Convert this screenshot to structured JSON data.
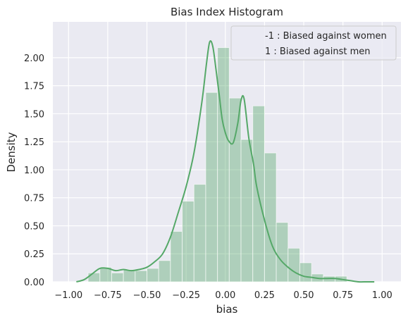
{
  "chart_data": {
    "type": "bar",
    "title": "Bias Index Histogram",
    "xlabel": "bias",
    "ylabel": "Density",
    "xlim": [
      -1.1,
      1.12
    ],
    "ylim": [
      0,
      2.32
    ],
    "xticks": [
      -1.0,
      -0.75,
      -0.5,
      -0.25,
      0.0,
      0.25,
      0.5,
      0.75,
      1.0
    ],
    "xtick_labels": [
      "−1.00",
      "−0.75",
      "−0.50",
      "−0.25",
      "0.00",
      "0.25",
      "0.50",
      "0.75",
      "1.00"
    ],
    "yticks": [
      0.0,
      0.25,
      0.5,
      0.75,
      1.0,
      1.25,
      1.5,
      1.75,
      2.0
    ],
    "ytick_labels": [
      "0.00",
      "0.25",
      "0.50",
      "0.75",
      "1.00",
      "1.25",
      "1.50",
      "1.75",
      "2.00"
    ],
    "grid": true,
    "legend_position": "top-right",
    "legend_entries": [
      "-1 : Biased against women",
      "1 : Biased against men"
    ],
    "colors": {
      "bar_fill": "#55a868",
      "kde_line": "#55a868",
      "plot_background": "#eaeaf2",
      "grid": "#ffffff"
    },
    "bins": {
      "edges": [
        -0.875,
        -0.8,
        -0.725,
        -0.65,
        -0.575,
        -0.5,
        -0.425,
        -0.35,
        -0.275,
        -0.2,
        -0.125,
        -0.05,
        0.025,
        0.1,
        0.175,
        0.25,
        0.325,
        0.4,
        0.475,
        0.55,
        0.625,
        0.7,
        0.775
      ],
      "density": [
        0.08,
        0.13,
        0.08,
        0.11,
        0.1,
        0.12,
        0.19,
        0.45,
        0.72,
        0.87,
        1.69,
        2.09,
        1.64,
        1.27,
        1.57,
        1.15,
        0.53,
        0.3,
        0.17,
        0.07,
        0.05,
        0.05
      ]
    },
    "kde": {
      "x": [
        -0.95,
        -0.9,
        -0.85,
        -0.8,
        -0.75,
        -0.7,
        -0.65,
        -0.6,
        -0.55,
        -0.5,
        -0.45,
        -0.4,
        -0.35,
        -0.3,
        -0.25,
        -0.2,
        -0.15,
        -0.12,
        -0.1,
        -0.08,
        -0.06,
        -0.04,
        -0.02,
        0.0,
        0.02,
        0.05,
        0.08,
        0.1,
        0.12,
        0.15,
        0.18,
        0.2,
        0.25,
        0.3,
        0.35,
        0.4,
        0.45,
        0.5,
        0.55,
        0.6,
        0.65,
        0.7,
        0.75,
        0.8,
        0.85,
        0.9,
        0.95
      ],
      "y": [
        0.0,
        0.02,
        0.07,
        0.12,
        0.12,
        0.1,
        0.11,
        0.1,
        0.11,
        0.13,
        0.18,
        0.25,
        0.4,
        0.62,
        0.85,
        1.15,
        1.6,
        1.95,
        2.14,
        2.1,
        1.9,
        1.68,
        1.45,
        1.33,
        1.26,
        1.24,
        1.42,
        1.62,
        1.63,
        1.28,
        1.05,
        0.85,
        0.55,
        0.32,
        0.2,
        0.13,
        0.08,
        0.05,
        0.04,
        0.03,
        0.03,
        0.03,
        0.02,
        0.01,
        0.0,
        0.0,
        0.0
      ]
    }
  }
}
